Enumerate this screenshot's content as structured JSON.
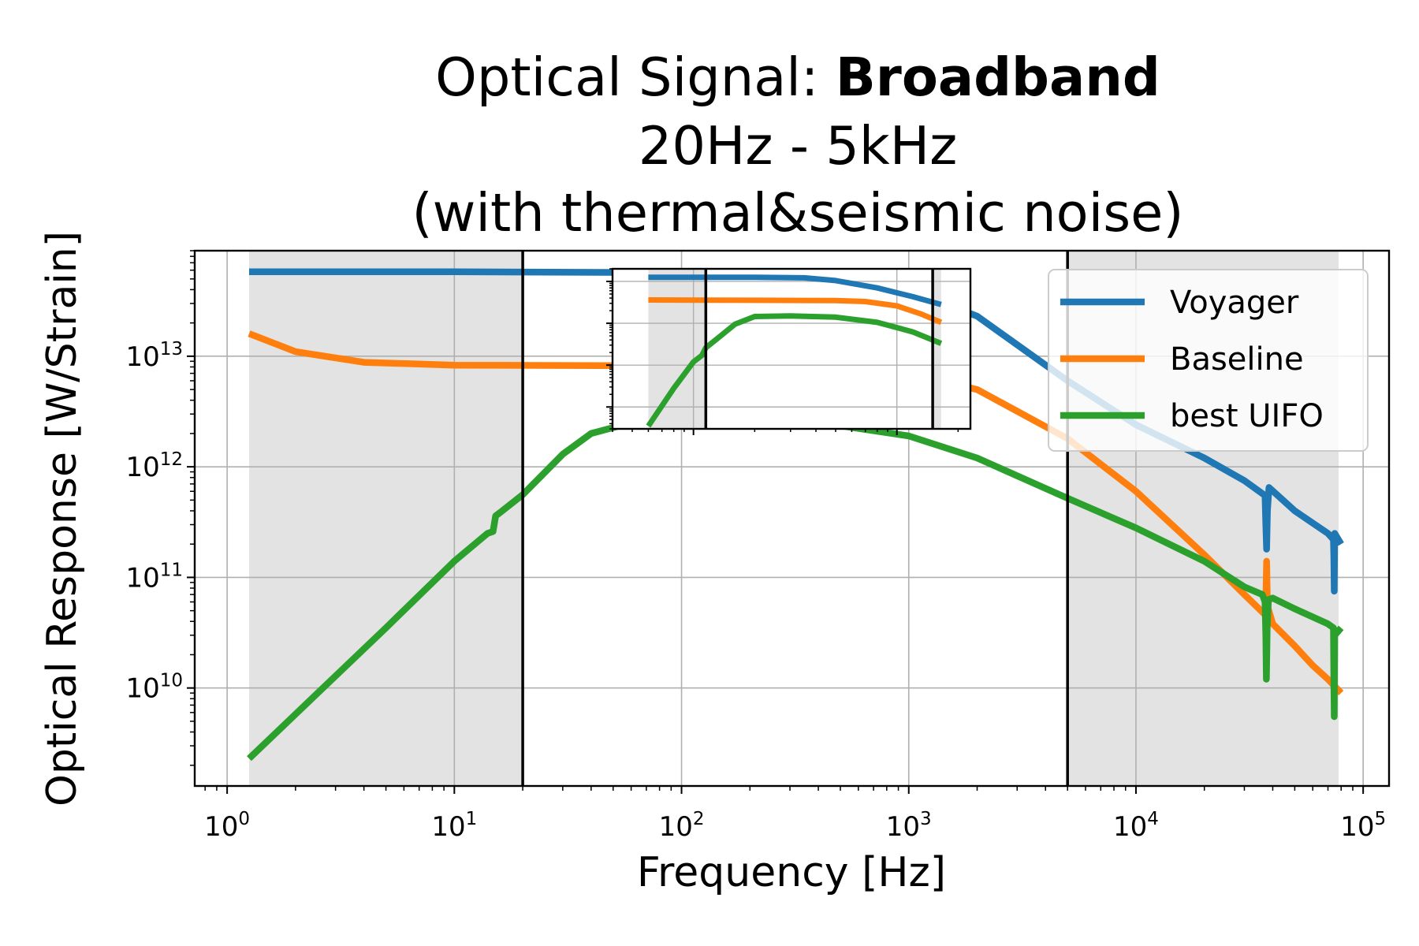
{
  "title": {
    "line1_prefix": "Optical Signal: ",
    "line1_bold": "Broadband",
    "line2": "20Hz - 5kHz",
    "line3": "(with thermal&seismic noise)"
  },
  "colors": {
    "voyager": "#1f77b4",
    "baseline": "#ff7f0e",
    "best_uifo": "#2ca02c",
    "shaded_band": "#e3e3e3",
    "grid": "#b0b0b0",
    "band_edges": "#000000"
  },
  "chart_data": {
    "type": "line",
    "title": "Optical Signal: Broadband 20Hz - 5kHz (with thermal&seismic noise)",
    "xlabel": "Frequency [Hz]",
    "ylabel": "Optical Response [W/Strain]",
    "xscale": "log",
    "yscale": "log",
    "xlim": [
      0.72,
      130000
    ],
    "ylim": [
      1300000000.0,
      90000000000000.0
    ],
    "grid": true,
    "legend_position": "upper right",
    "x_ticks": [
      {
        "base": "10",
        "exp": "0"
      },
      {
        "base": "10",
        "exp": "1"
      },
      {
        "base": "10",
        "exp": "2"
      },
      {
        "base": "10",
        "exp": "3"
      },
      {
        "base": "10",
        "exp": "4"
      },
      {
        "base": "10",
        "exp": "5"
      }
    ],
    "y_ticks": [
      {
        "base": "10",
        "exp": "10"
      },
      {
        "base": "10",
        "exp": "11"
      },
      {
        "base": "10",
        "exp": "12"
      },
      {
        "base": "10",
        "exp": "13"
      }
    ],
    "shaded_regions": [
      [
        1.25,
        20
      ],
      [
        5000,
        78000
      ]
    ],
    "vertical_lines": [
      20,
      5000
    ],
    "series": [
      {
        "name": "Voyager",
        "color": "#1f77b4",
        "points": [
          [
            1.25,
            58000000000000.0
          ],
          [
            10,
            58000000000000.0
          ],
          [
            100,
            57000000000000.0
          ],
          [
            300,
            56000000000000.0
          ],
          [
            600,
            50000000000000.0
          ],
          [
            1000,
            40000000000000.0
          ],
          [
            2000,
            23000000000000.0
          ],
          [
            5000,
            6000000000000.0
          ],
          [
            10000,
            2400000000000.0
          ],
          [
            20000,
            1200000000000.0
          ],
          [
            30000,
            750000000000.0
          ],
          [
            37000,
            550000000000.0
          ],
          [
            37300,
            300000000000.0
          ],
          [
            37600,
            180000000000.0
          ],
          [
            37900,
            400000000000.0
          ],
          [
            38500,
            650000000000.0
          ],
          [
            50000,
            400000000000.0
          ],
          [
            70000,
            250000000000.0
          ],
          [
            74000,
            220000000000.0
          ],
          [
            74300,
            150000000000.0
          ],
          [
            74600,
            75000000000.0
          ],
          [
            74900,
            250000000000.0
          ],
          [
            80000,
            200000000000.0
          ]
        ]
      },
      {
        "name": "Baseline",
        "color": "#ff7f0e",
        "points": [
          [
            1.25,
            16000000000000.0
          ],
          [
            2,
            11000000000000.0
          ],
          [
            4,
            8800000000000.0
          ],
          [
            10,
            8300000000000.0
          ],
          [
            100,
            8200000000000.0
          ],
          [
            500,
            7900000000000.0
          ],
          [
            1000,
            7000000000000.0
          ],
          [
            2000,
            5000000000000.0
          ],
          [
            5000,
            1800000000000.0
          ],
          [
            10000,
            600000000000.0
          ],
          [
            20000,
            160000000000.0
          ],
          [
            30000,
            70000000000.0
          ],
          [
            37000,
            46000000000.0
          ],
          [
            37300,
            60000000000.0
          ],
          [
            37600,
            140000000000.0
          ],
          [
            37900,
            55000000000.0
          ],
          [
            40000,
            38000000000.0
          ],
          [
            50000,
            24000000000.0
          ],
          [
            60000,
            16000000000.0
          ],
          [
            70000,
            12000000000.0
          ],
          [
            80000,
            9000000000.0
          ]
        ]
      },
      {
        "name": "best UIFO",
        "color": "#2ca02c",
        "points": [
          [
            1.25,
            2300000000.0
          ],
          [
            2,
            5800000000.0
          ],
          [
            5,
            35000000000.0
          ],
          [
            10,
            140000000000.0
          ],
          [
            14,
            250000000000.0
          ],
          [
            14.8,
            260000000000.0
          ],
          [
            15.2,
            360000000000.0
          ],
          [
            16,
            390000000000.0
          ],
          [
            20,
            560000000000.0
          ],
          [
            30,
            1300000000000.0
          ],
          [
            40,
            2000000000000.0
          ],
          [
            60,
            2500000000000.0
          ],
          [
            100,
            2600000000000.0
          ],
          [
            200,
            2600000000000.0
          ],
          [
            500,
            2350000000000.0
          ],
          [
            1000,
            1900000000000.0
          ],
          [
            2000,
            1200000000000.0
          ],
          [
            5000,
            520000000000.0
          ],
          [
            10000,
            280000000000.0
          ],
          [
            20000,
            140000000000.0
          ],
          [
            30000,
            82000000000.0
          ],
          [
            36000,
            70000000000.0
          ],
          [
            37000,
            60000000000.0
          ],
          [
            37300,
            30000000000.0
          ],
          [
            37500,
            12000000000.0
          ],
          [
            37800,
            35000000000.0
          ],
          [
            38300,
            63000000000.0
          ],
          [
            40000,
            65000000000.0
          ],
          [
            50000,
            52000000000.0
          ],
          [
            70000,
            38000000000.0
          ],
          [
            74000,
            35000000000.0
          ],
          [
            74300,
            12000000000.0
          ],
          [
            74600,
            5500000000.0
          ],
          [
            74900,
            30000000000.0
          ],
          [
            80000,
            35000000000.0
          ]
        ]
      }
    ],
    "inset": {
      "xscale": "log",
      "yscale": "log",
      "xlim": [
        40,
        2300
      ],
      "ylim": [
        30000000000.0,
        200000000000000.0
      ],
      "grid": true,
      "shaded_regions": [
        [
          60,
          115
        ],
        [
          1500,
          1650
        ]
      ],
      "vertical_lines": [
        115,
        1500
      ],
      "series": [
        {
          "name": "Voyager",
          "color": "#1f77b4",
          "points": [
            [
              60,
              125000000000000.0
            ],
            [
              200,
              125000000000000.0
            ],
            [
              350,
              122000000000000.0
            ],
            [
              500,
              105000000000000.0
            ],
            [
              800,
              70000000000000.0
            ],
            [
              1200,
              43000000000000.0
            ],
            [
              1650,
              28000000000000.0
            ]
          ]
        },
        {
          "name": "Baseline",
          "color": "#ff7f0e",
          "points": [
            [
              60,
              36000000000000.0
            ],
            [
              200,
              35500000000000.0
            ],
            [
              500,
              35000000000000.0
            ],
            [
              700,
              33000000000000.0
            ],
            [
              1000,
              26000000000000.0
            ],
            [
              1300,
              17000000000000.0
            ],
            [
              1650,
              10500000000000.0
            ]
          ]
        },
        {
          "name": "best UIFO",
          "color": "#2ca02c",
          "points": [
            [
              60,
              35000000000.0
            ],
            [
              80,
              280000000000.0
            ],
            [
              100,
              1200000000000.0
            ],
            [
              110,
              1700000000000.0
            ],
            [
              115,
              2600000000000.0
            ],
            [
              130,
              4200000000000.0
            ],
            [
              160,
              9500000000000.0
            ],
            [
              200,
              14500000000000.0
            ],
            [
              300,
              15000000000000.0
            ],
            [
              500,
              14000000000000.0
            ],
            [
              800,
              10500000000000.0
            ],
            [
              1200,
              6200000000000.0
            ],
            [
              1650,
              3300000000000.0
            ]
          ]
        }
      ]
    }
  }
}
